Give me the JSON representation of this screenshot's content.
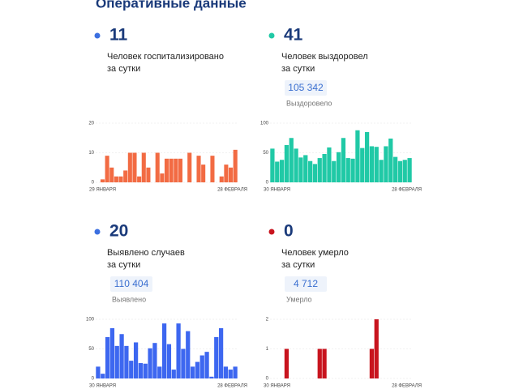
{
  "title": "Оперативные данные",
  "chart_data": [
    {
      "type": "bar",
      "headline": 11,
      "dot_color": "#3b6fe0",
      "caption": [
        "Человек госпитализировано",
        "за сутки"
      ],
      "color": "#f26b43",
      "categories": [
        "29 ЯНВАРЯ",
        null,
        null,
        null,
        null,
        null,
        null,
        null,
        null,
        null,
        null,
        null,
        null,
        null,
        null,
        null,
        null,
        null,
        null,
        null,
        null,
        null,
        null,
        null,
        null,
        null,
        null,
        null,
        null,
        null,
        "28 ФЕВРАЛЯ"
      ],
      "values": [
        0,
        1,
        9,
        5,
        2,
        2,
        4,
        10,
        10,
        2,
        10,
        5,
        0,
        10,
        3,
        8,
        8,
        8,
        8,
        0,
        10,
        0,
        9,
        6,
        0,
        9,
        0,
        2,
        6,
        5,
        11
      ],
      "ylim": [
        0,
        20
      ],
      "yticks": [
        0,
        10,
        20
      ],
      "grid": true
    },
    {
      "type": "bar",
      "headline": 41,
      "dot_color": "#20c9a6",
      "caption": [
        "Человек выздоровел",
        "за сутки"
      ],
      "total": "105 342",
      "total_label": "Выздоровело",
      "color": "#20c9a6",
      "categories": [
        "30 ЯНВАРЯ",
        null,
        null,
        null,
        null,
        null,
        null,
        null,
        null,
        null,
        null,
        null,
        null,
        null,
        null,
        null,
        null,
        null,
        null,
        null,
        null,
        null,
        null,
        null,
        null,
        null,
        null,
        null,
        null,
        "28 ФЕВРАЛЯ"
      ],
      "values": [
        57,
        35,
        38,
        63,
        75,
        57,
        42,
        46,
        36,
        31,
        41,
        48,
        59,
        36,
        51,
        75,
        41,
        40,
        88,
        58,
        85,
        61,
        60,
        38,
        61,
        74,
        43,
        36,
        38,
        41
      ],
      "ylim": [
        0,
        100
      ],
      "yticks": [
        0,
        50,
        100
      ],
      "grid": true
    },
    {
      "type": "bar",
      "headline": 20,
      "dot_color": "#3b6fe0",
      "caption": [
        "Выявлено случаев",
        "за сутки"
      ],
      "total": "110 404",
      "total_label": "Выявлено",
      "color": "#3d67f0",
      "categories": [
        "30 ЯНВАРЯ",
        null,
        null,
        null,
        null,
        null,
        null,
        null,
        null,
        null,
        null,
        null,
        null,
        null,
        null,
        null,
        null,
        null,
        null,
        null,
        null,
        null,
        null,
        null,
        null,
        null,
        null,
        null,
        null,
        "28 ФЕВРАЛЯ"
      ],
      "values": [
        20,
        8,
        70,
        85,
        55,
        75,
        55,
        30,
        61,
        26,
        25,
        51,
        60,
        20,
        93,
        58,
        15,
        93,
        50,
        80,
        20,
        28,
        39,
        45,
        3,
        70,
        85,
        20,
        15,
        20
      ],
      "ylim": [
        0,
        100
      ],
      "yticks": [
        0,
        50,
        100
      ],
      "grid": true
    },
    {
      "type": "bar",
      "headline": 0,
      "dot_color": "#c8141e",
      "caption": [
        "Человек умерло",
        "за сутки"
      ],
      "total": "4 712",
      "total_label": "Умерло",
      "color": "#c8141e",
      "categories": [
        "30 ЯНВАРЯ",
        null,
        null,
        null,
        null,
        null,
        null,
        null,
        null,
        null,
        null,
        null,
        null,
        null,
        null,
        null,
        null,
        null,
        null,
        null,
        null,
        null,
        null,
        null,
        null,
        null,
        null,
        null,
        null,
        "28 ФЕВРАЛЯ"
      ],
      "values": [
        0,
        0,
        0,
        1,
        0,
        0,
        0,
        0,
        0,
        0,
        1,
        1,
        0,
        0,
        0,
        0,
        0,
        0,
        0,
        0,
        0,
        1,
        2,
        0,
        0,
        0,
        0,
        0,
        0,
        0
      ],
      "ylim": [
        0,
        2
      ],
      "yticks": [
        0,
        1,
        2
      ],
      "grid": true
    }
  ]
}
